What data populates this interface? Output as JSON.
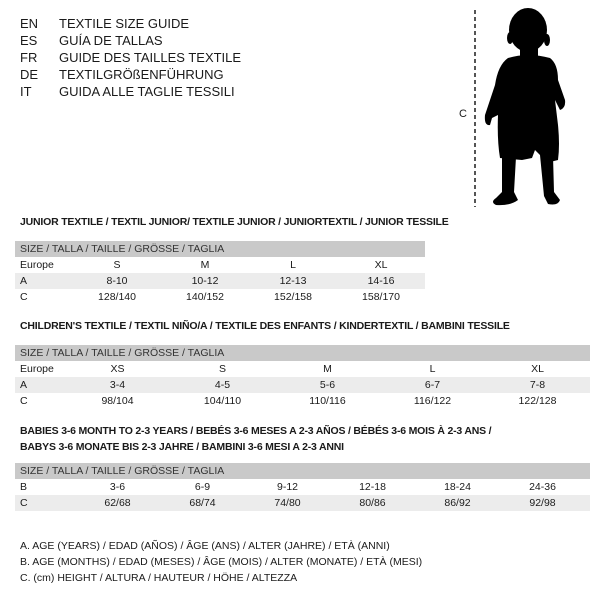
{
  "languages": [
    {
      "code": "EN",
      "title": "TEXTILE SIZE GUIDE"
    },
    {
      "code": "ES",
      "title": "GUÍA DE TALLAS"
    },
    {
      "code": "FR",
      "title": "GUIDE DES TAILLES TEXTILE"
    },
    {
      "code": "DE",
      "title": "TEXTILGRÖßENFÜHRUNG"
    },
    {
      "code": "IT",
      "title": "GUIDA ALLE TAGLIE TESSILI"
    }
  ],
  "figure": {
    "height_label": "C",
    "icon": "child-silhouette"
  },
  "junior": {
    "title": "JUNIOR TEXTILE / TEXTIL JUNIOR/ TEXTILE JUNIOR / JUNIORTEXTIL / JUNIOR TESSILE",
    "header": "SIZE / TALLA / TAILLE / GRÖSSE / TAGLIA",
    "rows": [
      {
        "label": "Europe",
        "cells": [
          "S",
          "M",
          "L",
          "XL"
        ]
      },
      {
        "label": "A",
        "cells": [
          "8-10",
          "10-12",
          "12-13",
          "14-16"
        ]
      },
      {
        "label": "C",
        "cells": [
          "128/140",
          "140/152",
          "152/158",
          "158/170"
        ]
      }
    ]
  },
  "children": {
    "title": "CHILDREN'S TEXTILE / TEXTIL NIÑO/A / TEXTILE DES ENFANTS / KINDERTEXTIL / BAMBINI TESSILE",
    "header": "SIZE / TALLA / TAILLE / GRÖSSE / TAGLIA",
    "rows": [
      {
        "label": "Europe",
        "cells": [
          "XS",
          "S",
          "M",
          "L",
          "XL"
        ]
      },
      {
        "label": "A",
        "cells": [
          "3-4",
          "4-5",
          "5-6",
          "6-7",
          "7-8"
        ]
      },
      {
        "label": "C",
        "cells": [
          "98/104",
          "104/110",
          "110/116",
          "116/122",
          "122/128"
        ]
      }
    ]
  },
  "babies": {
    "title_line1": "BABIES 3-6 MONTH TO 2-3 YEARS / BEBÉS 3-6 MESES A 2-3 AÑOS / BÉBÉS 3-6 MOIS À 2-3 ANS /",
    "title_line2": "BABYS 3-6 MONATE BIS 2-3 JAHRE / BAMBINI 3-6 MESI A 2-3 ANNI",
    "header": "SIZE / TALLA / TAILLE / GRÖSSE / TAGLIA",
    "rows": [
      {
        "label": "B",
        "cells": [
          "3-6",
          "6-9",
          "9-12",
          "12-18",
          "18-24",
          "24-36"
        ]
      },
      {
        "label": "C",
        "cells": [
          "62/68",
          "68/74",
          "74/80",
          "80/86",
          "86/92",
          "92/98"
        ]
      }
    ]
  },
  "legend": [
    "A. AGE (YEARS) / EDAD (AÑOS) / ÂGE (ANS) / ALTER (JAHRE) / ETÀ (ANNI)",
    "B. AGE (MONTHS) / EDAD (MESES) / ÂGE (MOIS) / ALTER (MONATE) / ETÀ (MESI)",
    "C. (cm) HEIGHT / ALTURA / HAUTEUR / HÖHE / ALTEZZA"
  ]
}
